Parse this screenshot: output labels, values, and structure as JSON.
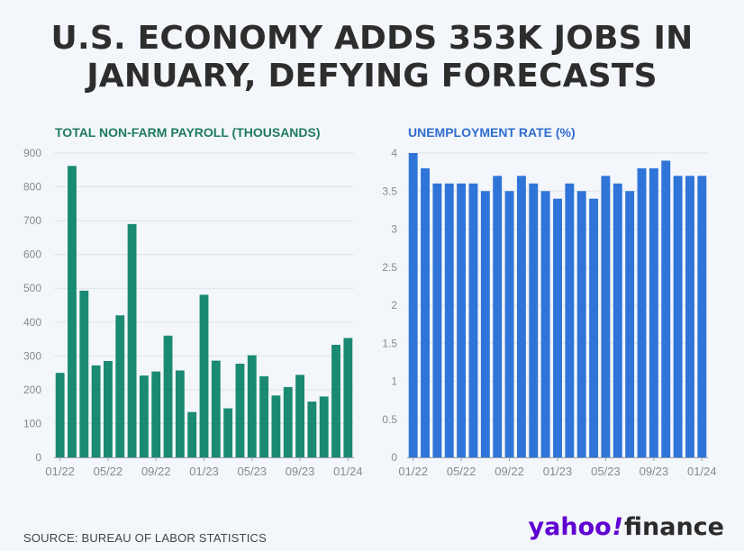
{
  "headline": {
    "line1": "U.S. ECONOMY ADDS 353K JOBS IN",
    "line2": "JANUARY, DEFYING FORECASTS"
  },
  "source": "SOURCE: BUREAU OF LABOR STATISTICS",
  "logo": {
    "yahoo": "yahoo",
    "bang": "!",
    "finance": "finance"
  },
  "colors": {
    "payroll_bar": "#1b8a73",
    "unemployment_bar": "#2f74d8",
    "grid": "#dfe3e8",
    "axis": "#9aa3ad"
  },
  "chart_data": [
    {
      "type": "bar",
      "title": "TOTAL NON-FARM PAYROLL (THOUSANDS)",
      "xlabel": "",
      "ylabel": "",
      "ylim": [
        0,
        900
      ],
      "yticks": [
        0,
        100,
        200,
        300,
        400,
        500,
        600,
        700,
        800,
        900
      ],
      "grid": true,
      "categories": [
        "01/22",
        "02/22",
        "03/22",
        "04/22",
        "05/22",
        "06/22",
        "07/22",
        "08/22",
        "09/22",
        "10/22",
        "11/22",
        "12/22",
        "01/23",
        "02/23",
        "03/23",
        "04/23",
        "05/23",
        "06/23",
        "07/23",
        "08/23",
        "09/23",
        "10/23",
        "11/23",
        "12/23",
        "01/24"
      ],
      "xtick_labels": [
        "01/22",
        "05/22",
        "09/22",
        "01/23",
        "05/23",
        "09/23",
        "01/24"
      ],
      "values": [
        250,
        862,
        493,
        272,
        285,
        420,
        690,
        242,
        254,
        360,
        257,
        134,
        481,
        286,
        145,
        277,
        302,
        240,
        183,
        208,
        244,
        165,
        180,
        333,
        353
      ]
    },
    {
      "type": "bar",
      "title": "UNEMPLOYMENT RATE (%)",
      "xlabel": "",
      "ylabel": "",
      "ylim": [
        0,
        4
      ],
      "yticks": [
        0,
        0.5,
        1,
        1.5,
        2,
        2.5,
        3,
        3.5,
        4
      ],
      "grid": true,
      "categories": [
        "01/22",
        "02/22",
        "03/22",
        "04/22",
        "05/22",
        "06/22",
        "07/22",
        "08/22",
        "09/22",
        "10/22",
        "11/22",
        "12/22",
        "01/23",
        "02/23",
        "03/23",
        "04/23",
        "05/23",
        "06/23",
        "07/23",
        "08/23",
        "09/23",
        "10/23",
        "11/23",
        "12/23",
        "01/24"
      ],
      "xtick_labels": [
        "01/22",
        "05/22",
        "09/22",
        "01/23",
        "05/23",
        "09/23",
        "01/24"
      ],
      "values": [
        4.0,
        3.8,
        3.6,
        3.6,
        3.6,
        3.6,
        3.5,
        3.7,
        3.5,
        3.7,
        3.6,
        3.5,
        3.4,
        3.6,
        3.5,
        3.4,
        3.7,
        3.6,
        3.5,
        3.8,
        3.8,
        3.9,
        3.7,
        3.7,
        3.7
      ]
    }
  ]
}
